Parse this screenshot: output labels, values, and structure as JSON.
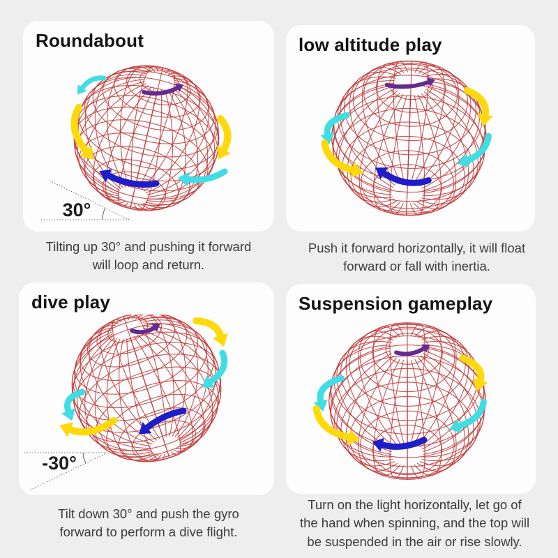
{
  "colors": {
    "wire": "#c03a38",
    "yellow": "#ffd90a",
    "cyan": "#3fdde4",
    "blue": "#1d1dc9",
    "purple": "#632b92"
  },
  "panels": [
    {
      "id": "roundabout",
      "title": "Roundabout",
      "angle_label": "30°",
      "caption_lines": [
        "Tilting up 30° and pushing it forward",
        "will loop and return."
      ]
    },
    {
      "id": "low-altitude-play",
      "title": "low altitude play",
      "caption_lines": [
        "Push it forward horizontally, it will float",
        "forward or fall with inertia."
      ]
    },
    {
      "id": "dive-play",
      "title": "dive play",
      "angle_label": "-30°",
      "caption_lines": [
        "Tilt down 30° and push the gyro",
        "forward to perform a dive flight."
      ]
    },
    {
      "id": "suspension-gameplay",
      "title": "Suspension gameplay",
      "caption_lines": [
        "Turn on the light horizontally, let go of",
        "the hand when spinning, and the top will",
        "be suspended in the air or rise slowly."
      ]
    }
  ]
}
